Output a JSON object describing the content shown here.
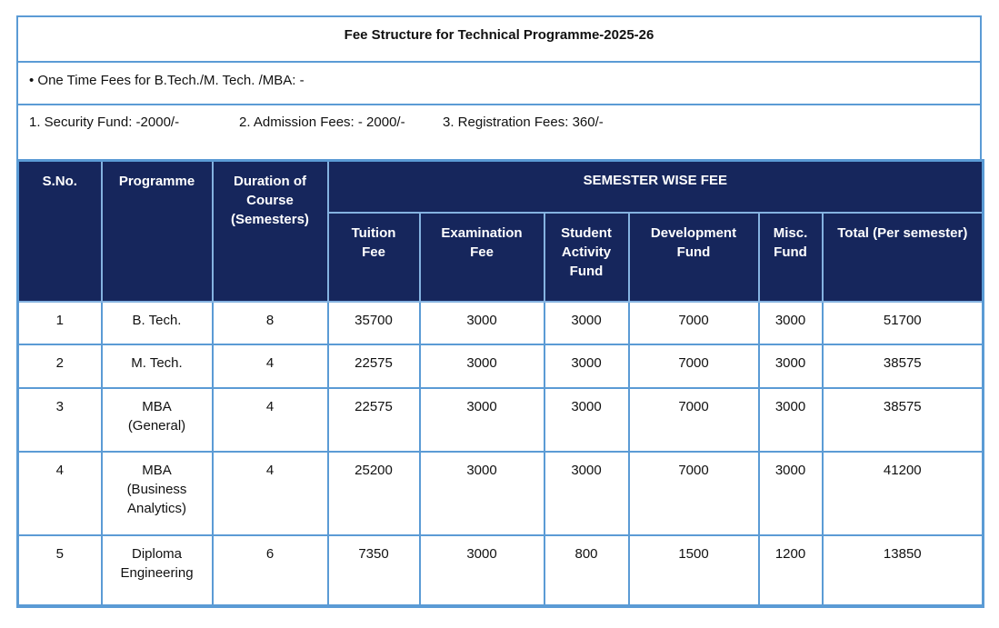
{
  "header": {
    "title": "Fee Structure for Technical Programme-2025-26",
    "one_time_fees_note": "• One Time Fees for B.Tech./M. Tech. /MBA: -",
    "fee_items": [
      "1. Security Fund: -2000/-",
      "2. Admission Fees: - 2000/-",
      "3. Registration Fees: 360/-"
    ]
  },
  "table": {
    "corner_headers": [
      "S.No.",
      "Programme",
      "Duration of\nCourse\n(Semesters)"
    ],
    "group_header": "SEMESTER WISE FEE",
    "sub_headers": [
      "Tuition\nFee",
      "Examination\nFee",
      "Student\nActivity\nFund",
      "Development\nFund",
      "Misc.\nFund",
      "Total (Per semester)"
    ],
    "rows": [
      {
        "cells": [
          "1",
          "B. Tech.",
          "8",
          "35700",
          "3000",
          "3000",
          "7000",
          "3000",
          "51700"
        ]
      },
      {
        "cells": [
          "2",
          "M. Tech.",
          "4",
          "22575",
          "3000",
          "3000",
          "7000",
          "3000",
          "38575"
        ]
      },
      {
        "cells": [
          "3",
          "MBA\n(General)",
          "4",
          "22575",
          "3000",
          "3000",
          "7000",
          "3000",
          "38575"
        ]
      },
      {
        "cells": [
          "4",
          "MBA\n(Business\nAnalytics)",
          "4",
          "25200",
          "3000",
          "3000",
          "7000",
          "3000",
          "41200"
        ]
      },
      {
        "cells": [
          "5",
          "Diploma\nEngineering",
          "6",
          "7350",
          "3000",
          "800",
          "1500",
          "1200",
          "13850"
        ]
      }
    ]
  },
  "colors": {
    "header_bg": "#16265C",
    "header_text": "#FFFFFF",
    "table_border": "#5B9BD5",
    "header_border": "#84B2E0",
    "body_text": "#111111"
  }
}
